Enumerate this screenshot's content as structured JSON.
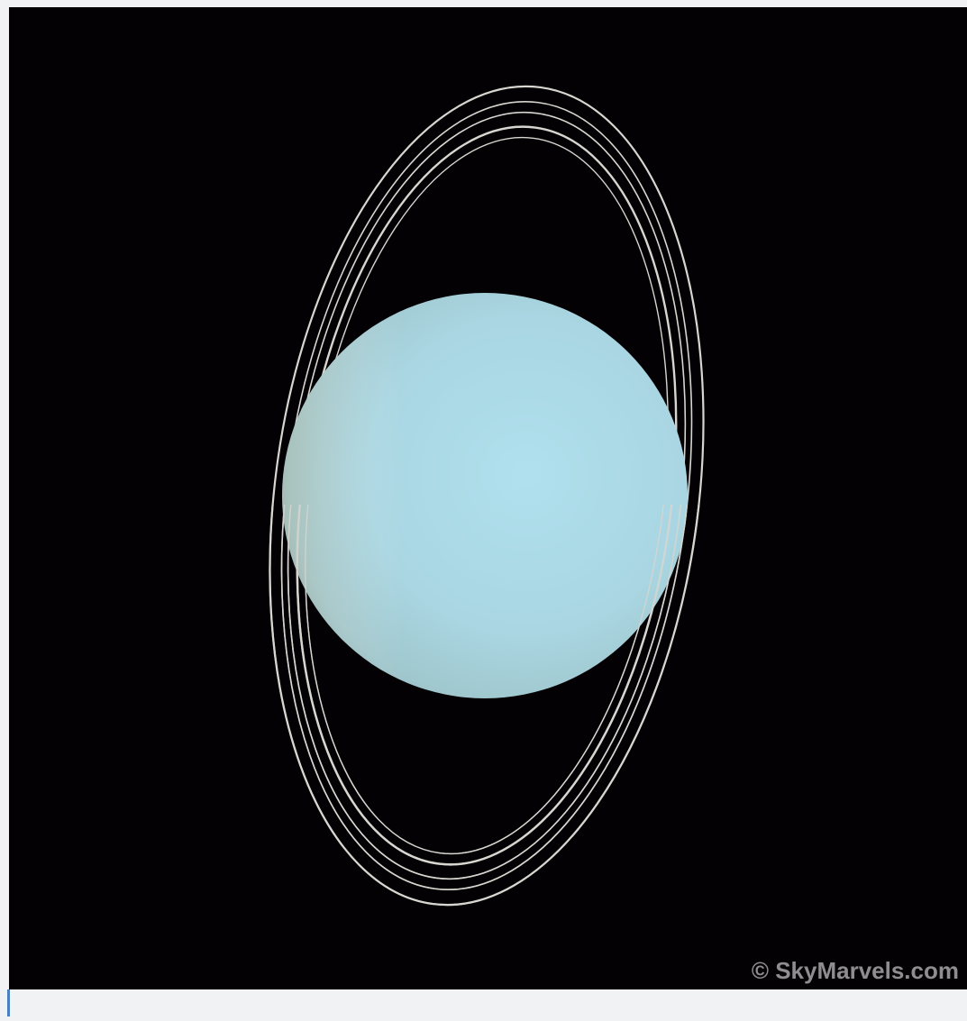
{
  "image": {
    "credit": "© SkyMarvels.com"
  }
}
